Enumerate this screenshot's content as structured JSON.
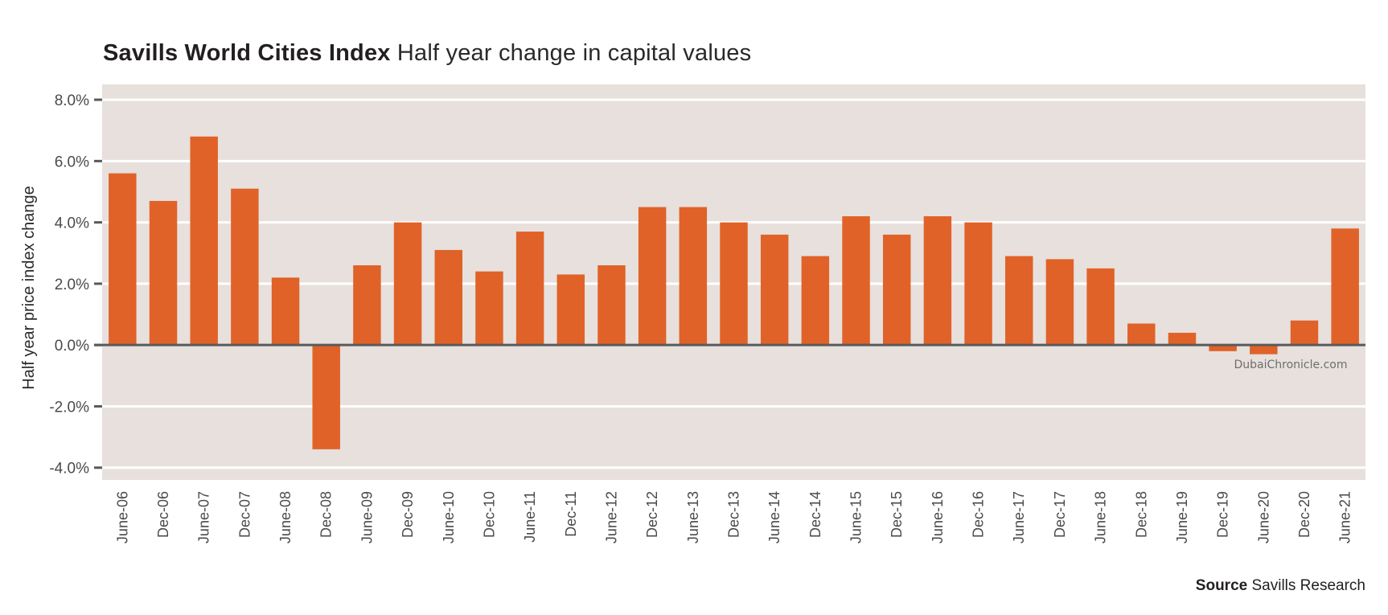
{
  "header": {
    "title_bold": "Savills World Cities Index",
    "title_rest": "Half year change in capital values"
  },
  "footer": {
    "source_label": "Source",
    "source_text": "Savills Research"
  },
  "watermark": "DubaiChronicle.com",
  "colors": {
    "bar": "#E06228",
    "plot_background": "#E7E0DC",
    "gridline": "#FFFFFF",
    "zero_line": "#5A5A5A",
    "tick": "#5A5A5A"
  },
  "chart_data": {
    "type": "bar",
    "title": "Savills World Cities Index Half year change in capital values",
    "xlabel": "",
    "ylabel": "Half year price index change",
    "ylim": [
      -4.4,
      8.5
    ],
    "yticks": [
      8.0,
      6.0,
      4.0,
      2.0,
      0.0,
      -2.0,
      -4.0
    ],
    "ytick_labels": [
      "8.0%",
      "6.0%",
      "4.0%",
      "2.0%",
      "0.0%",
      "-2.0%",
      "-4.0%"
    ],
    "grid": true,
    "legend": "none",
    "categories": [
      "June-06",
      "Dec-06",
      "June-07",
      "Dec-07",
      "June-08",
      "Dec-08",
      "June-09",
      "Dec-09",
      "June-10",
      "Dec-10",
      "June-11",
      "Dec-11",
      "June-12",
      "Dec-12",
      "June-13",
      "Dec-13",
      "June-14",
      "Dec-14",
      "June-15",
      "Dec-15",
      "June-16",
      "Dec-16",
      "June-17",
      "Dec-17",
      "June-18",
      "Dec-18",
      "June-19",
      "Dec-19",
      "June-20",
      "Dec-20",
      "June-21"
    ],
    "values": [
      5.6,
      4.7,
      6.8,
      5.1,
      2.2,
      -3.4,
      2.6,
      4.0,
      3.1,
      2.4,
      3.7,
      2.3,
      2.6,
      4.5,
      4.5,
      4.0,
      3.6,
      2.9,
      4.2,
      3.6,
      4.2,
      4.0,
      2.9,
      2.8,
      2.5,
      0.7,
      0.4,
      -0.2,
      -0.3,
      0.8,
      3.8
    ],
    "units": "%",
    "source": "Savills Research"
  }
}
